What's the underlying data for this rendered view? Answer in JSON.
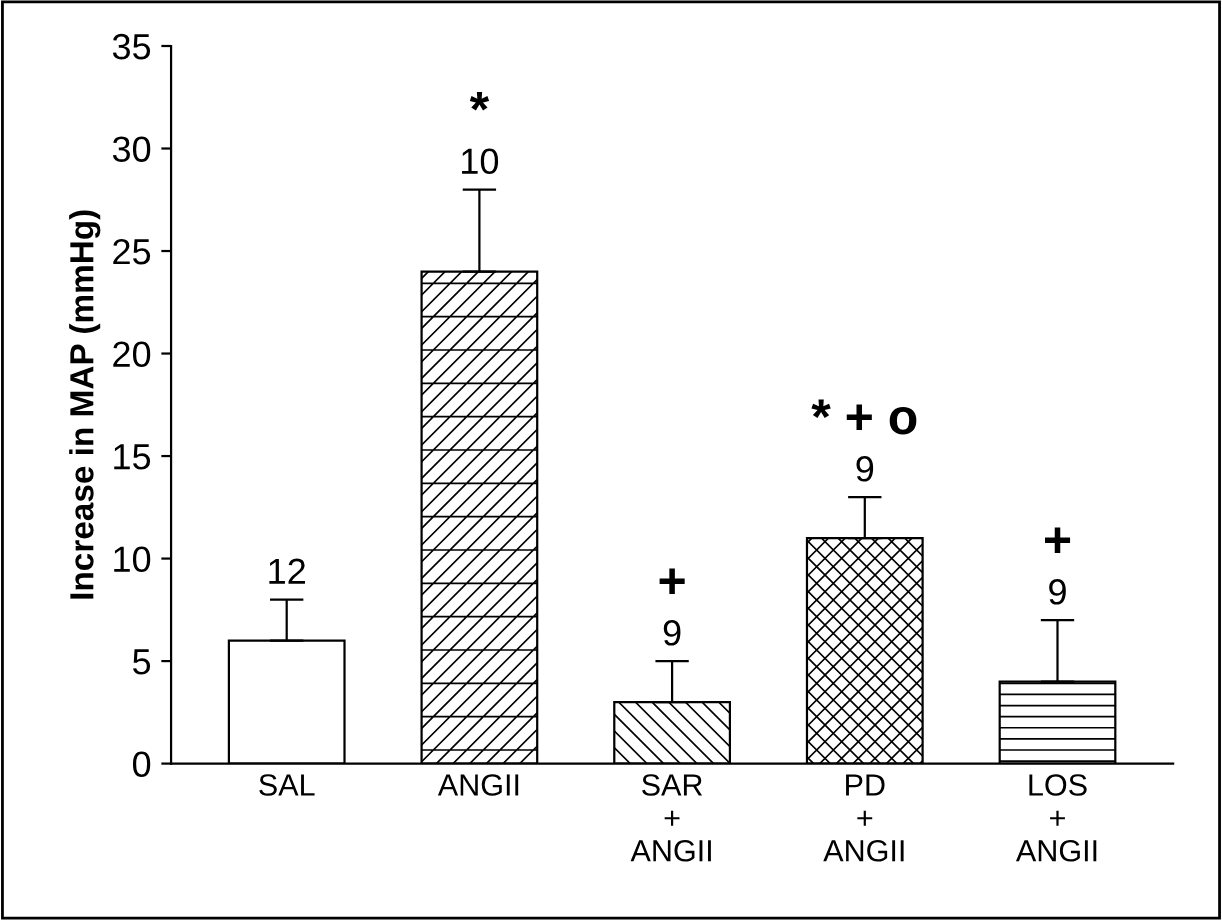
{
  "chart_data": {
    "type": "bar",
    "ylabel": "Increase in MAP (mmHg)",
    "categories": [
      "SAL",
      "ANGII",
      "SAR\n+\nANGII",
      "PD\n+\nANGII",
      "LOS\n+\nANGII"
    ],
    "values": [
      6,
      24,
      3,
      11,
      4
    ],
    "colors": [
      "#000000",
      "#000000",
      "#000000",
      "#000000",
      "#000000"
    ],
    "errors": [
      [
        6,
        8
      ],
      [
        24,
        28
      ],
      [
        3,
        5
      ],
      [
        11,
        13
      ],
      [
        4,
        7
      ]
    ],
    "ylim": [
      0,
      35
    ],
    "yticks": [
      0,
      5,
      10,
      15,
      20,
      25,
      30,
      35
    ],
    "grid": false,
    "annotations": [
      "12",
      "10",
      "*",
      "9",
      "+",
      "9",
      "* + o",
      "9",
      "+"
    ]
  }
}
